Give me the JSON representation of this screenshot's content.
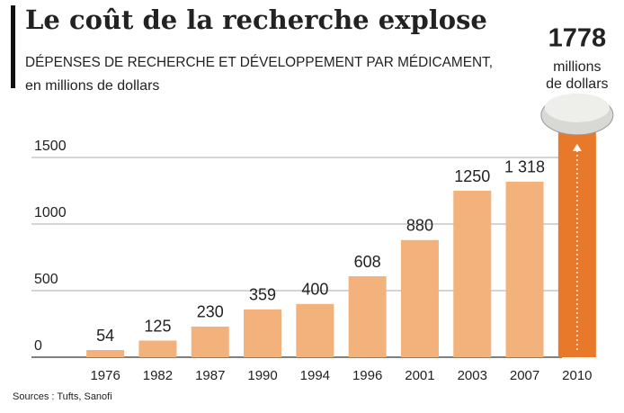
{
  "chart_data": {
    "type": "bar",
    "title": "Le coût de la recherche explose",
    "subtitle": [
      "DÉPENSES DE RECHERCHE ET DÉVELOPPEMENT PAR MÉDICAMENT,",
      "en millions de dollars"
    ],
    "source": "Sources : Tufts, Sanofi",
    "categories": [
      "1976",
      "1982",
      "1987",
      "1990",
      "1994",
      "1996",
      "2001",
      "2003",
      "2007",
      "2010"
    ],
    "values": [
      54,
      125,
      230,
      359,
      400,
      608,
      880,
      1250,
      1318,
      1778
    ],
    "value_labels": [
      "54",
      "125",
      "230",
      "359",
      "400",
      "608",
      "880",
      "1250",
      "1 318",
      "1778"
    ],
    "annotation": [
      "millions",
      "de dollars"
    ],
    "color": "#f3b27b",
    "highlight_color": "#e8782a",
    "highlight_index": 9,
    "ylim": [
      0,
      2000
    ],
    "yticks": [
      0,
      500,
      1000,
      1500
    ],
    "grid": true
  }
}
